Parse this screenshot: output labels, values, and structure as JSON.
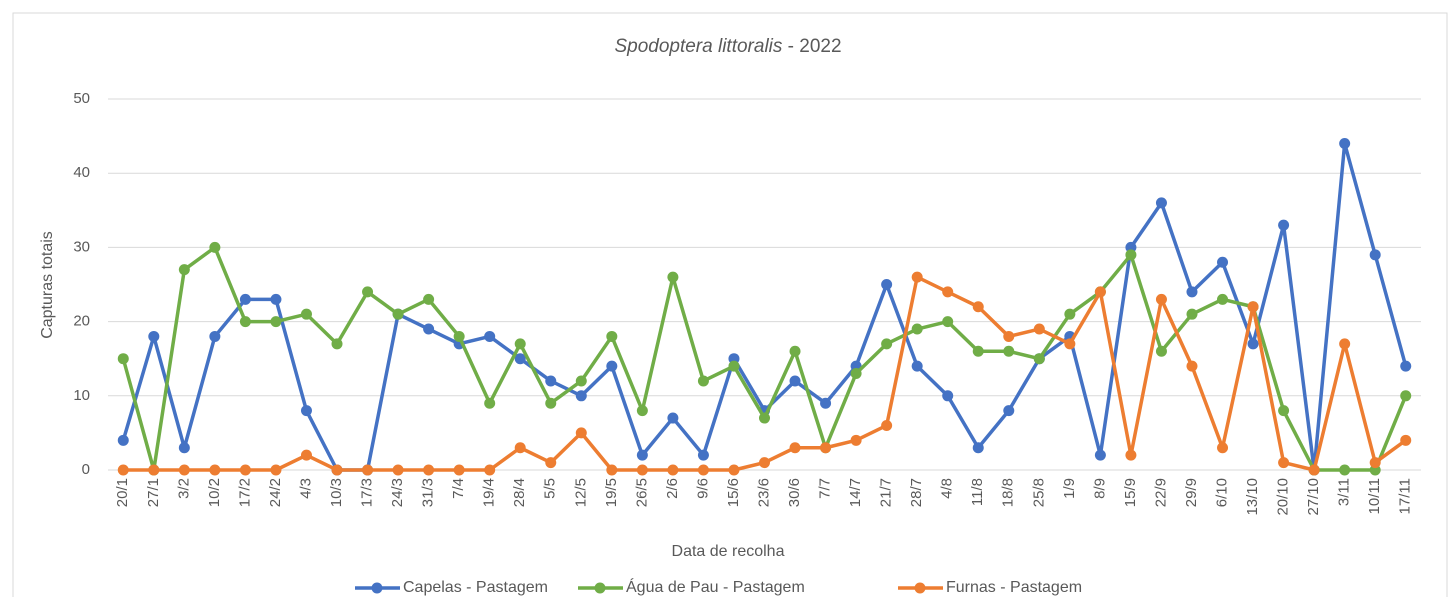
{
  "chart_data": {
    "type": "line",
    "title": "Spodoptera littoralis - 2022",
    "x_label": "Data de recolha",
    "y_label": "Capturas totais",
    "categories": [
      "20/1",
      "27/1",
      "3/2",
      "10/2",
      "17/2",
      "24/2",
      "4/3",
      "10/3",
      "17/3",
      "24/3",
      "31/3",
      "7/4",
      "19/4",
      "28/4",
      "5/5",
      "12/5",
      "19/5",
      "26/5",
      "2/6",
      "9/6",
      "15/6",
      "23/6",
      "30/6",
      "7/7",
      "14/7",
      "21/7",
      "28/7",
      "4/8",
      "11/8",
      "18/8",
      "25/8",
      "1/9",
      "8/9",
      "15/9",
      "22/9",
      "29/9",
      "6/10",
      "13/10",
      "20/10",
      "27/10",
      "3/11",
      "10/11",
      "17/11"
    ],
    "series": [
      {
        "name": "Capelas - Pastagem",
        "color": "#4472c4",
        "values": [
          4,
          18,
          3,
          18,
          23,
          23,
          8,
          0,
          0,
          21,
          19,
          17,
          18,
          15,
          12,
          10,
          14,
          2,
          7,
          2,
          15,
          8,
          12,
          9,
          14,
          25,
          14,
          10,
          3,
          8,
          15,
          18,
          2,
          30,
          36,
          24,
          28,
          17,
          33,
          0,
          44,
          29,
          14
        ]
      },
      {
        "name": "Água de Pau - Pastagem",
        "color": "#70ad47",
        "values": [
          15,
          0,
          27,
          30,
          20,
          20,
          21,
          17,
          24,
          21,
          23,
          18,
          9,
          17,
          9,
          12,
          18,
          8,
          26,
          12,
          14,
          7,
          16,
          3,
          13,
          17,
          19,
          20,
          16,
          16,
          15,
          21,
          24,
          29,
          16,
          21,
          23,
          22,
          8,
          0,
          0,
          0,
          10
        ]
      },
      {
        "name": "Furnas - Pastagem",
        "color": "#ed7d31",
        "values": [
          0,
          0,
          0,
          0,
          0,
          0,
          2,
          0,
          0,
          0,
          0,
          0,
          0,
          3,
          1,
          5,
          0,
          0,
          0,
          0,
          0,
          1,
          3,
          3,
          4,
          6,
          26,
          24,
          22,
          18,
          19,
          17,
          24,
          2,
          23,
          14,
          3,
          22,
          1,
          0,
          17,
          1,
          4
        ]
      }
    ],
    "ylim": [
      0,
      50
    ],
    "yticks": [
      0,
      10,
      20,
      30,
      40,
      50
    ],
    "grid": true,
    "legend": "bottom"
  }
}
